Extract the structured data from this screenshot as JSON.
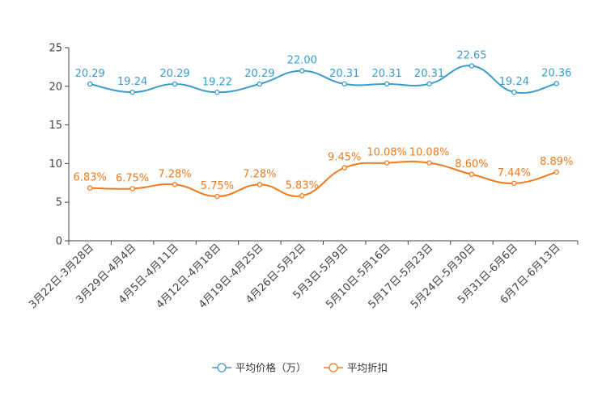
{
  "chart_data": {
    "type": "line",
    "title": "",
    "xlabel": "",
    "ylabel": "",
    "ylim": [
      0,
      25
    ],
    "yticks": [
      0,
      5,
      10,
      15,
      20,
      25
    ],
    "grid": false,
    "legend_position": "bottom-center",
    "categories": [
      "3月22日-3月28日",
      "3月29日-4月4日",
      "4月5日-4月11日",
      "4月12日-4月18日",
      "4月19日-4月25日",
      "4月26日-5月2日",
      "5月3日-5月9日",
      "5月10日-5月16日",
      "5月17日-5月23日",
      "5月24日-5月30日",
      "5月31日-6月6日",
      "6月7日-6月13日"
    ],
    "series": [
      {
        "name": "平均价格（万）",
        "color": "#3a9cc9",
        "values": [
          20.29,
          19.24,
          20.29,
          19.22,
          20.29,
          22.0,
          20.31,
          20.31,
          20.31,
          22.65,
          19.24,
          20.36
        ],
        "labels": [
          "20.29",
          "19.24",
          "20.29",
          "19.22",
          "20.29",
          "22.00",
          "20.31",
          "20.31",
          "20.31",
          "22.65",
          "19.24",
          "20.36"
        ]
      },
      {
        "name": "平均折扣",
        "color": "#f07b1f",
        "values": [
          6.83,
          6.75,
          7.28,
          5.75,
          7.28,
          5.83,
          9.45,
          10.08,
          10.08,
          8.6,
          7.44,
          8.89
        ],
        "labels": [
          "6.83%",
          "6.75%",
          "7.28%",
          "5.75%",
          "7.28%",
          "5.83%",
          "9.45%",
          "10.08%",
          "10.08%",
          "8.60%",
          "7.44%",
          "8.89%"
        ]
      }
    ]
  }
}
